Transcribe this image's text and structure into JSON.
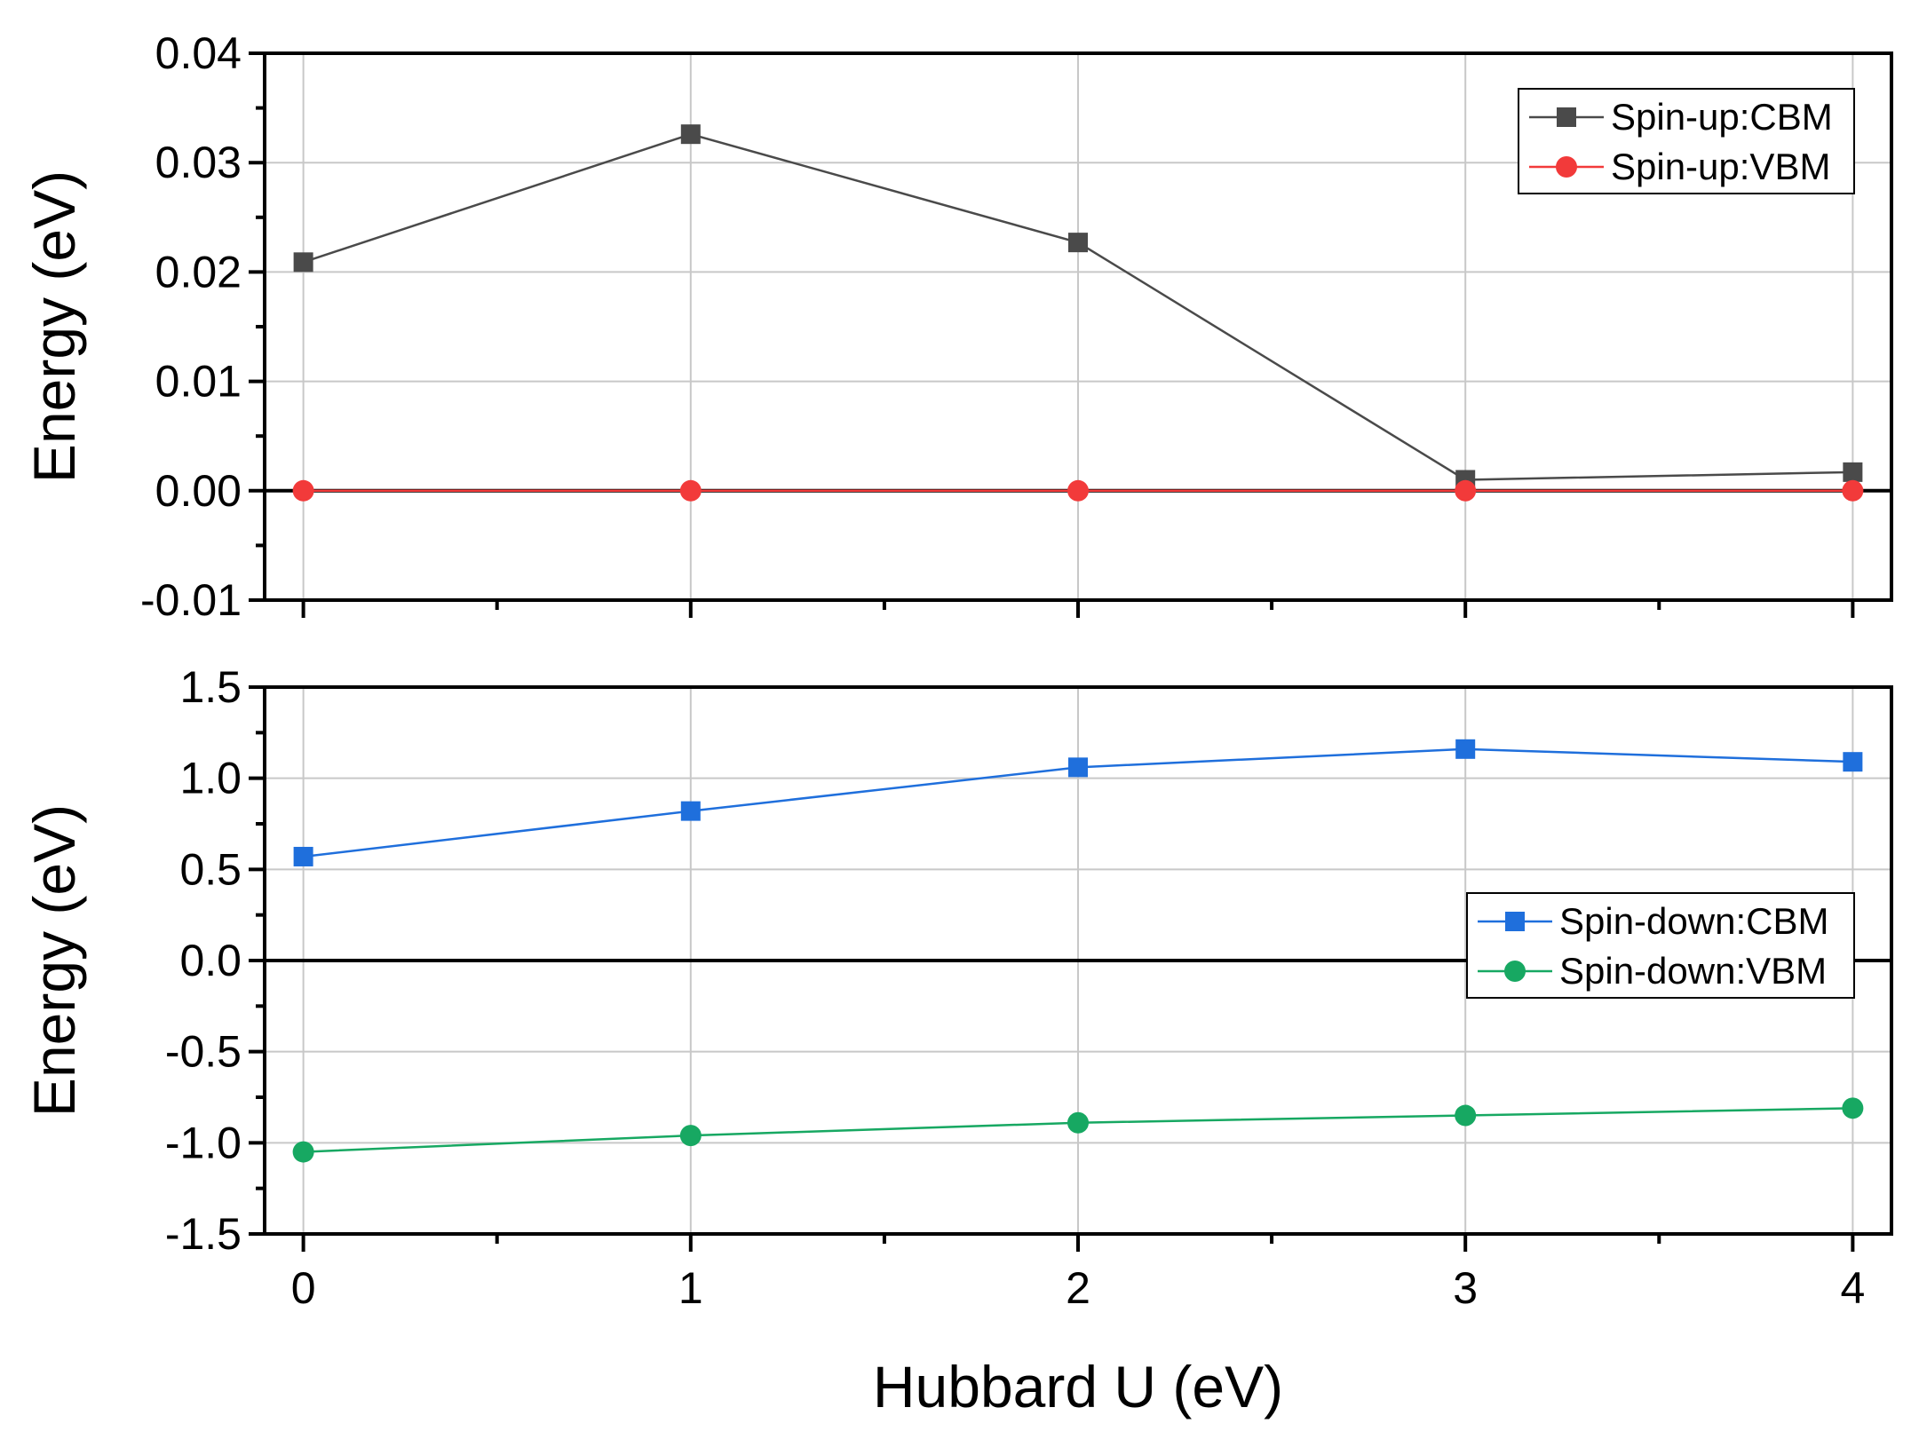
{
  "chart_data": [
    {
      "type": "line",
      "panel": "top",
      "ylabel": "Energy (eV)",
      "xlabel": "",
      "x": [
        0,
        1,
        2,
        3,
        4
      ],
      "xlim": [
        -0.1,
        4.1
      ],
      "ylim": [
        -0.01,
        0.04
      ],
      "yticks": [
        -0.01,
        0.0,
        0.01,
        0.02,
        0.03,
        0.04
      ],
      "ytick_labels": [
        "-0.01",
        "0.00",
        "0.01",
        "0.02",
        "0.03",
        "0.04"
      ],
      "zero_line": true,
      "grid": true,
      "legend_position": "top-right",
      "series": [
        {
          "name": "Spin-up:CBM",
          "marker": "square",
          "color": "#4a4a4a",
          "values": [
            0.0209,
            0.0326,
            0.0227,
            0.001,
            0.0017
          ]
        },
        {
          "name": "Spin-up:VBM",
          "marker": "circle",
          "color": "#f23a3a",
          "values": [
            0.0,
            0.0,
            0.0,
            0.0,
            0.0
          ]
        }
      ]
    },
    {
      "type": "line",
      "panel": "bottom",
      "ylabel": "Energy (eV)",
      "xlabel": "Hubbard U (eV)",
      "x": [
        0,
        1,
        2,
        3,
        4
      ],
      "xlim": [
        -0.1,
        4.1
      ],
      "ylim": [
        -1.5,
        1.5
      ],
      "yticks": [
        -1.5,
        -1.0,
        -0.5,
        0.0,
        0.5,
        1.0,
        1.5
      ],
      "ytick_labels": [
        "-1.5",
        "-1.0",
        "-0.5",
        "0.0",
        "0.5",
        "1.0",
        "1.5"
      ],
      "xticks": [
        0,
        1,
        2,
        3,
        4
      ],
      "xtick_labels": [
        "0",
        "1",
        "2",
        "3",
        "4"
      ],
      "zero_line": true,
      "grid": true,
      "legend_position": "center-right",
      "series": [
        {
          "name": "Spin-down:CBM",
          "marker": "square",
          "color": "#1f6fdc",
          "values": [
            0.57,
            0.82,
            1.06,
            1.16,
            1.09
          ]
        },
        {
          "name": "Spin-down:VBM",
          "marker": "circle",
          "color": "#17a862",
          "values": [
            -1.05,
            -0.96,
            -0.89,
            -0.85,
            -0.81
          ]
        }
      ]
    }
  ]
}
